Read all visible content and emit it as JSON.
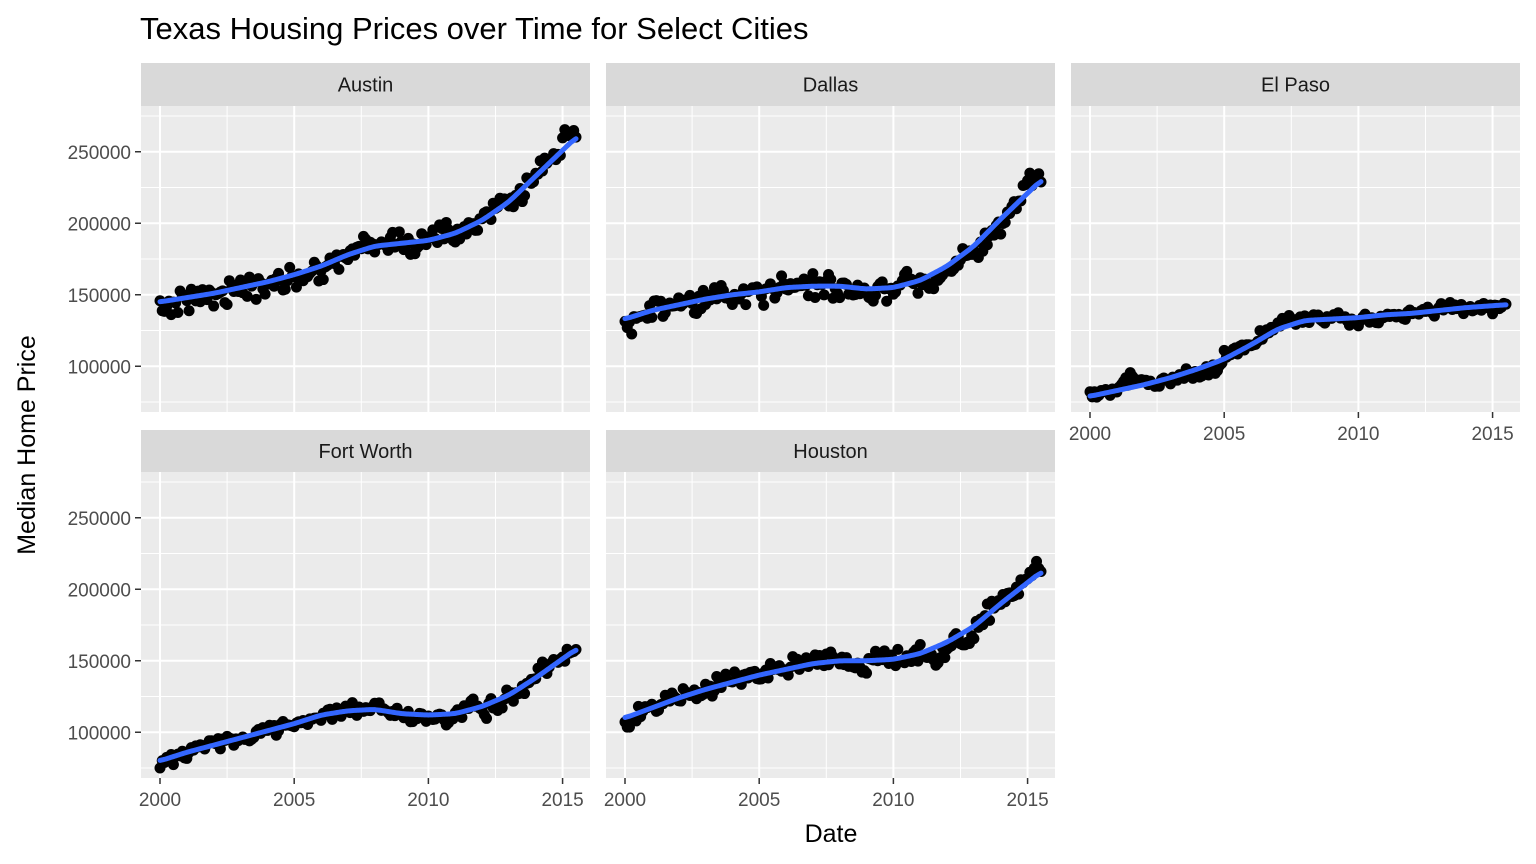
{
  "chart_data": {
    "type": "scatter",
    "title": "Texas Housing Prices over Time for Select Cities",
    "xlabel": "Date",
    "ylabel": "Median Home Price",
    "xlim": [
      2000,
      2015.5
    ],
    "ylim": [
      75000,
      275000
    ],
    "x_ticks": [
      2000,
      2005,
      2010,
      2015
    ],
    "y_ticks": [
      100000,
      150000,
      200000,
      250000
    ],
    "x_tick_labels": [
      "2000",
      "2005",
      "2010",
      "2015"
    ],
    "y_tick_labels": [
      "100000",
      "150000",
      "200000",
      "250000"
    ],
    "grid": true,
    "smooth_color": "#3366FF",
    "point_color": "#000000",
    "panel_background": "#EBEBEB",
    "strip_background": "#D9D9D9",
    "facets": [
      {
        "name": "Austin",
        "trend": [
          [
            2000,
            145000
          ],
          [
            2001,
            148000
          ],
          [
            2002,
            151000
          ],
          [
            2003,
            155000
          ],
          [
            2004,
            159000
          ],
          [
            2005,
            164000
          ],
          [
            2006,
            170000
          ],
          [
            2007,
            178000
          ],
          [
            2008,
            184000
          ],
          [
            2009,
            186000
          ],
          [
            2010,
            188000
          ],
          [
            2011,
            193000
          ],
          [
            2012,
            202000
          ],
          [
            2013,
            215000
          ],
          [
            2014,
            233000
          ],
          [
            2015.5,
            260000
          ]
        ],
        "anchors": [
          [
            2000,
            134000
          ],
          [
            2001,
            148000
          ],
          [
            2002,
            150000
          ],
          [
            2003,
            153000
          ],
          [
            2004,
            155000
          ],
          [
            2005,
            160000
          ],
          [
            2006,
            167000
          ],
          [
            2007,
            178000
          ],
          [
            2007.6,
            190000
          ],
          [
            2008.5,
            188000
          ],
          [
            2009,
            184000
          ],
          [
            2010,
            183000
          ],
          [
            2010.5,
            203000
          ],
          [
            2011,
            188000
          ],
          [
            2011.8,
            202000
          ],
          [
            2012.5,
            208000
          ],
          [
            2013,
            215000
          ],
          [
            2014,
            232000
          ],
          [
            2014.8,
            245000
          ],
          [
            2015.2,
            268000
          ],
          [
            2015.5,
            265000
          ]
        ],
        "noise": 7000
      },
      {
        "name": "Dallas",
        "trend": [
          [
            2000,
            133000
          ],
          [
            2001,
            139000
          ],
          [
            2002,
            143000
          ],
          [
            2003,
            147000
          ],
          [
            2004,
            150000
          ],
          [
            2005,
            152000
          ],
          [
            2006,
            155000
          ],
          [
            2007,
            156000
          ],
          [
            2008,
            156000
          ],
          [
            2009,
            154000
          ],
          [
            2010,
            155000
          ],
          [
            2011,
            160000
          ],
          [
            2012,
            170000
          ],
          [
            2013,
            184000
          ],
          [
            2014,
            203000
          ],
          [
            2015.5,
            230000
          ]
        ],
        "anchors": [
          [
            2000,
            125000
          ],
          [
            2001,
            138000
          ],
          [
            2002,
            141000
          ],
          [
            2003,
            147000
          ],
          [
            2004,
            148000
          ],
          [
            2005,
            152000
          ],
          [
            2006,
            156000
          ],
          [
            2007,
            160000
          ],
          [
            2008,
            155000
          ],
          [
            2008.8,
            150000
          ],
          [
            2009.5,
            157000
          ],
          [
            2010,
            149000
          ],
          [
            2010.5,
            162000
          ],
          [
            2011.5,
            152000
          ],
          [
            2012,
            165000
          ],
          [
            2013,
            180000
          ],
          [
            2013.8,
            190000
          ],
          [
            2014.5,
            215000
          ],
          [
            2015.2,
            238000
          ],
          [
            2015.5,
            232000
          ]
        ],
        "noise": 7000
      },
      {
        "name": "El Paso",
        "trend": [
          [
            2000,
            79000
          ],
          [
            2001,
            83000
          ],
          [
            2002,
            87000
          ],
          [
            2003,
            92000
          ],
          [
            2004,
            98000
          ],
          [
            2005,
            105000
          ],
          [
            2006,
            115000
          ],
          [
            2007,
            126000
          ],
          [
            2008,
            132000
          ],
          [
            2009,
            133000
          ],
          [
            2010,
            134000
          ],
          [
            2011,
            136000
          ],
          [
            2012,
            137000
          ],
          [
            2013,
            139000
          ],
          [
            2014,
            141000
          ],
          [
            2015.5,
            143000
          ]
        ],
        "anchors": [
          [
            2000,
            80000
          ],
          [
            2001,
            84000
          ],
          [
            2001.5,
            99000
          ],
          [
            2002,
            86000
          ],
          [
            2003,
            89000
          ],
          [
            2004,
            95000
          ],
          [
            2004.7,
            87000
          ],
          [
            2005,
            106000
          ],
          [
            2006,
            118000
          ],
          [
            2006.5,
            125000
          ],
          [
            2007.5,
            135000
          ],
          [
            2008.5,
            133000
          ],
          [
            2009,
            133000
          ],
          [
            2010,
            131000
          ],
          [
            2011,
            135000
          ],
          [
            2012,
            133000
          ],
          [
            2013,
            143000
          ],
          [
            2014,
            141000
          ],
          [
            2015,
            139000
          ],
          [
            2015.5,
            146000
          ]
        ],
        "noise": 4000
      },
      {
        "name": "Fort Worth",
        "trend": [
          [
            2000,
            80000
          ],
          [
            2001,
            86000
          ],
          [
            2002,
            91000
          ],
          [
            2003,
            96000
          ],
          [
            2004,
            101000
          ],
          [
            2005,
            106000
          ],
          [
            2006,
            112000
          ],
          [
            2007,
            115000
          ],
          [
            2008,
            116000
          ],
          [
            2009,
            113000
          ],
          [
            2010,
            112000
          ],
          [
            2011,
            113000
          ],
          [
            2012,
            118000
          ],
          [
            2013,
            126000
          ],
          [
            2014,
            138000
          ],
          [
            2015.5,
            158000
          ]
        ],
        "anchors": [
          [
            2000,
            78000
          ],
          [
            2001,
            88000
          ],
          [
            2002,
            95000
          ],
          [
            2003,
            96000
          ],
          [
            2004,
            100000
          ],
          [
            2005,
            105000
          ],
          [
            2006,
            114000
          ],
          [
            2007,
            117000
          ],
          [
            2008,
            118000
          ],
          [
            2009,
            109000
          ],
          [
            2010,
            108000
          ],
          [
            2011,
            110000
          ],
          [
            2011.5,
            120000
          ],
          [
            2012,
            112000
          ],
          [
            2013,
            122000
          ],
          [
            2013.8,
            135000
          ],
          [
            2014.3,
            150000
          ],
          [
            2015,
            152000
          ],
          [
            2015.5,
            160000
          ]
        ],
        "noise": 5000
      },
      {
        "name": "Houston",
        "trend": [
          [
            2000,
            110000
          ],
          [
            2001,
            117000
          ],
          [
            2002,
            124000
          ],
          [
            2003,
            130000
          ],
          [
            2004,
            135000
          ],
          [
            2005,
            140000
          ],
          [
            2006,
            144000
          ],
          [
            2007,
            148000
          ],
          [
            2008,
            150000
          ],
          [
            2009,
            150000
          ],
          [
            2010,
            151000
          ],
          [
            2011,
            155000
          ],
          [
            2012,
            163000
          ],
          [
            2013,
            174000
          ],
          [
            2014,
            190000
          ],
          [
            2015.5,
            212000
          ]
        ],
        "anchors": [
          [
            2000,
            104000
          ],
          [
            2001,
            118000
          ],
          [
            2002,
            124000
          ],
          [
            2003,
            131000
          ],
          [
            2004,
            136000
          ],
          [
            2005,
            140000
          ],
          [
            2006,
            148000
          ],
          [
            2007,
            152000
          ],
          [
            2008,
            153000
          ],
          [
            2008.8,
            135000
          ],
          [
            2009.5,
            160000
          ],
          [
            2010,
            148000
          ],
          [
            2011,
            155000
          ],
          [
            2011.8,
            140000
          ],
          [
            2012.2,
            163000
          ],
          [
            2012.8,
            150000
          ],
          [
            2013.3,
            180000
          ],
          [
            2014,
            195000
          ],
          [
            2014.8,
            200000
          ],
          [
            2015.3,
            220000
          ],
          [
            2015.5,
            218000
          ]
        ],
        "noise": 6000
      }
    ]
  }
}
